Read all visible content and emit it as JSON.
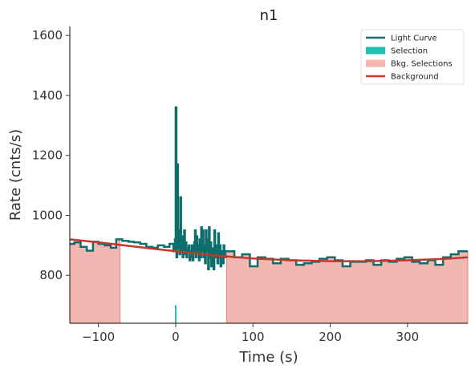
{
  "chart_data": {
    "type": "line",
    "title": "n1",
    "xlabel": "Time (s)",
    "ylabel": "Rate (cnts/s)",
    "xlim": [
      -137,
      378
    ],
    "ylim": [
      640,
      1630
    ],
    "xticks": [
      -100,
      0,
      100,
      200,
      300
    ],
    "xtick_labels": [
      "−100",
      "0",
      "100",
      "200",
      "300"
    ],
    "yticks": [
      800,
      1000,
      1200,
      1400,
      1600
    ],
    "ytick_labels": [
      "800",
      "1000",
      "1200",
      "1400",
      "1600"
    ],
    "grid": false,
    "legend_position": "top-right",
    "colors": {
      "light_curve": "#0d6e6b",
      "selection": "#1fbfb1",
      "bkg_selection": "#f4b6b0",
      "bkg_selection_edge": "#e8857a",
      "background": "#c0392b",
      "axis": "#333333"
    },
    "legend": [
      {
        "label": "Light Curve",
        "kind": "line",
        "color": "#0d6e6b"
      },
      {
        "label": "Selection",
        "kind": "patch",
        "color": "#1fbfb1"
      },
      {
        "label": "Bkg. Selections",
        "kind": "patch",
        "color": "#f4b6b0"
      },
      {
        "label": "Background",
        "kind": "line",
        "color": "#c0392b"
      }
    ],
    "light_curve": {
      "step": "post",
      "x": [
        -137,
        -131,
        -123,
        -115,
        -107,
        -100,
        -92,
        -84,
        -77,
        -69,
        -61,
        -54,
        -46,
        -38,
        -30,
        -23,
        -15,
        -8,
        -3,
        -1,
        0,
        1,
        2,
        3,
        4,
        5,
        6,
        7,
        8,
        9,
        10,
        11,
        12,
        13,
        14,
        15,
        16,
        17,
        18,
        19,
        20,
        21,
        22,
        23,
        24,
        25,
        26,
        27,
        28,
        29,
        30,
        31,
        32,
        33,
        34,
        35,
        36,
        37,
        38,
        39,
        40,
        41,
        42,
        43,
        44,
        45,
        46,
        47,
        48,
        49,
        50,
        51,
        52,
        53,
        54,
        55,
        56,
        57,
        58,
        59,
        60,
        61,
        62,
        63,
        64,
        66,
        76,
        86,
        96,
        106,
        116,
        126,
        136,
        146,
        156,
        166,
        176,
        186,
        196,
        206,
        216,
        226,
        236,
        246,
        256,
        266,
        276,
        286,
        296,
        306,
        316,
        326,
        336,
        346,
        356,
        366,
        376
      ],
      "y": [
        905,
        910,
        895,
        882,
        912,
        905,
        900,
        892,
        920,
        915,
        912,
        910,
        905,
        895,
        892,
        900,
        895,
        905,
        880,
        920,
        1360,
        860,
        1170,
        890,
        950,
        870,
        1060,
        880,
        930,
        860,
        900,
        950,
        870,
        910,
        860,
        890,
        880,
        900,
        850,
        880,
        860,
        900,
        850,
        880,
        910,
        950,
        860,
        930,
        880,
        900,
        850,
        920,
        860,
        960,
        880,
        950,
        860,
        900,
        840,
        950,
        880,
        920,
        820,
        960,
        860,
        910,
        830,
        880,
        890,
        820,
        950,
        860,
        900,
        880,
        840,
        940,
        860,
        900,
        830,
        880,
        870,
        840,
        900,
        860,
        880,
        880,
        860,
        870,
        830,
        860,
        855,
        840,
        855,
        850,
        835,
        840,
        845,
        855,
        860,
        850,
        830,
        845,
        845,
        850,
        835,
        850,
        845,
        855,
        860,
        845,
        840,
        850,
        835,
        860,
        870,
        880,
        880
      ]
    },
    "background": {
      "x": [
        -137,
        -100,
        -50,
        0,
        50,
        100,
        150,
        200,
        250,
        300,
        350,
        378
      ],
      "y": [
        920,
        910,
        895,
        880,
        866,
        856,
        850,
        847,
        847,
        850,
        855,
        860
      ]
    },
    "selection": {
      "x0": -1,
      "x1": 1
    },
    "bkg_selections": [
      {
        "x0": -137,
        "x1": -72
      },
      {
        "x0": 66,
        "x1": 378
      }
    ]
  }
}
